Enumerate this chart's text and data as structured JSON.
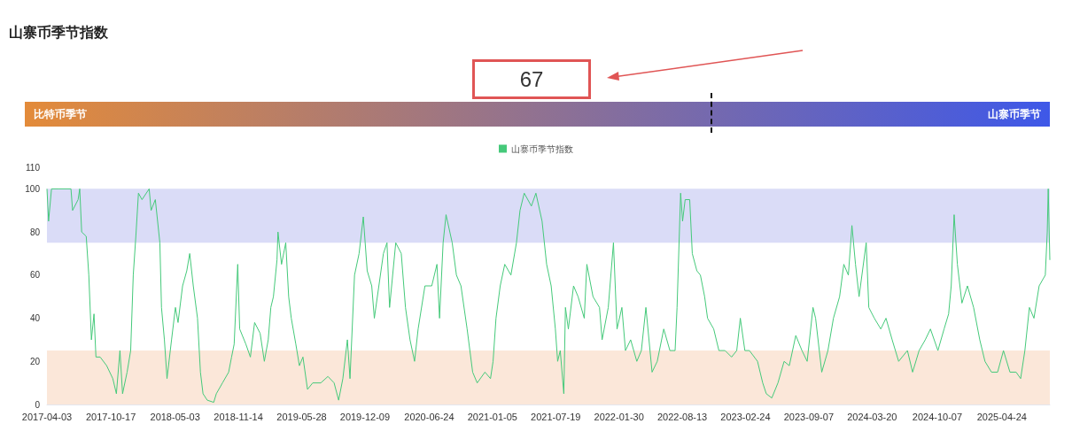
{
  "chart_data": {
    "type": "line",
    "title": "山寨币季节指数",
    "annotations": [
      "67",
      "比特币季节",
      "山寨币季节"
    ],
    "x": [
      "2017-04-03",
      "2017-04-08",
      "2017-04-17",
      "2017-05-11",
      "2017-06-16",
      "2017-06-21",
      "2017-07-08",
      "2017-07-13",
      "2017-07-19",
      "2017-08-02",
      "2017-08-10",
      "2017-08-18",
      "2017-08-26",
      "2017-09-01",
      "2017-09-14",
      "2017-10-04",
      "2017-10-23",
      "2017-11-03",
      "2017-11-14",
      "2017-11-22",
      "2017-12-06",
      "2017-12-17",
      "2017-12-25",
      "2018-01-02",
      "2018-01-10",
      "2018-01-21",
      "2018-02-12",
      "2018-02-18",
      "2018-03-03",
      "2018-03-17",
      "2018-03-22",
      "2018-03-31",
      "2018-04-08",
      "2018-04-22",
      "2018-05-04",
      "2018-05-12",
      "2018-05-26",
      "2018-06-08",
      "2018-06-17",
      "2018-06-28",
      "2018-07-11",
      "2018-07-20",
      "2018-07-28",
      "2018-08-10",
      "2018-08-30",
      "2018-09-07",
      "2018-09-26",
      "2018-10-15",
      "2018-10-24",
      "2018-11-01",
      "2018-11-12",
      "2018-11-18",
      "2018-12-07",
      "2018-12-21",
      "2019-01-03",
      "2019-01-20",
      "2019-02-02",
      "2019-02-14",
      "2019-02-22",
      "2019-03-02",
      "2019-03-13",
      "2019-03-16",
      "2019-03-27",
      "2019-04-09",
      "2019-04-18",
      "2019-04-26",
      "2019-05-10",
      "2019-05-21",
      "2019-06-01",
      "2019-06-15",
      "2019-07-01",
      "2019-07-26",
      "2019-08-17",
      "2019-09-05",
      "2019-09-19",
      "2019-10-02",
      "2019-10-16",
      "2019-10-24",
      "2019-11-07",
      "2019-11-21",
      "2019-12-04",
      "2019-12-16",
      "2019-12-30",
      "2020-01-07",
      "2020-02-04",
      "2020-02-15",
      "2020-02-23",
      "2020-03-13",
      "2020-03-30",
      "2020-04-12",
      "2020-04-26",
      "2020-05-10",
      "2020-05-21",
      "2020-06-11",
      "2020-07-02",
      "2020-07-18",
      "2020-07-26",
      "2020-08-06",
      "2020-08-15",
      "2020-09-03",
      "2020-09-16",
      "2020-09-30",
      "2020-10-19",
      "2020-11-05",
      "2020-11-19",
      "2020-12-13",
      "2020-12-30",
      "2021-01-07",
      "2021-01-16",
      "2021-01-29",
      "2021-02-12",
      "2021-03-03",
      "2021-03-20",
      "2021-03-31",
      "2021-04-13",
      "2021-05-05",
      "2021-05-19",
      "2021-06-07",
      "2021-06-21",
      "2021-07-05",
      "2021-07-18",
      "2021-07-25",
      "2021-08-02",
      "2021-08-13",
      "2021-08-18",
      "2021-08-27",
      "2021-09-12",
      "2021-09-26",
      "2021-10-15",
      "2021-10-23",
      "2021-11-11",
      "2021-12-01",
      "2021-12-09",
      "2021-12-28",
      "2022-01-13",
      "2022-01-24",
      "2022-02-08",
      "2022-02-19",
      "2022-03-07",
      "2022-03-26",
      "2022-04-09",
      "2022-04-23",
      "2022-05-12",
      "2022-05-28",
      "2022-06-17",
      "2022-07-06",
      "2022-07-22",
      "2022-07-28",
      "2022-08-08",
      "2022-08-14",
      "2022-08-22",
      "2022-09-05",
      "2022-09-13",
      "2022-09-27",
      "2022-10-08",
      "2022-10-21",
      "2022-10-30",
      "2022-11-18",
      "2022-12-04",
      "2022-12-23",
      "2023-01-12",
      "2023-01-28",
      "2023-02-08",
      "2023-02-22",
      "2023-03-08",
      "2023-04-02",
      "2023-04-18",
      "2023-04-29",
      "2023-05-16",
      "2023-06-04",
      "2023-06-23",
      "2023-07-09",
      "2023-07-29",
      "2023-08-17",
      "2023-09-02",
      "2023-09-20",
      "2023-09-28",
      "2023-10-17",
      "2023-11-05",
      "2023-11-22",
      "2023-12-11",
      "2023-12-24",
      "2024-01-07",
      "2024-01-18",
      "2024-01-29",
      "2024-02-09",
      "2024-03-02",
      "2024-03-10",
      "2024-03-27",
      "2024-04-16",
      "2024-05-02",
      "2024-05-21",
      "2024-06-10",
      "2024-07-07",
      "2024-07-23",
      "2024-08-12",
      "2024-08-31",
      "2024-09-16",
      "2024-10-09",
      "2024-10-28",
      "2024-11-11",
      "2024-11-19",
      "2024-11-28",
      "2024-12-08",
      "2024-12-22",
      "2025-01-08",
      "2025-01-27",
      "2025-02-15",
      "2025-03-03",
      "2025-03-23",
      "2025-04-11",
      "2025-04-29",
      "2025-05-19",
      "2025-06-07",
      "2025-06-21",
      "2025-07-04",
      "2025-07-18",
      "2025-08-01",
      "2025-08-17",
      "2025-09-05",
      "2025-09-11",
      "2025-09-14",
      "2025-09-19"
    ],
    "series": [
      {
        "name": "山寨币季节指数",
        "color": "#45c97a",
        "values": [
          100,
          85,
          100,
          100,
          100,
          90,
          95,
          100,
          80,
          78,
          60,
          30,
          42,
          22,
          22,
          18,
          12,
          5,
          25,
          5,
          15,
          25,
          60,
          78,
          98,
          95,
          100,
          90,
          95,
          75,
          45,
          30,
          12,
          30,
          45,
          38,
          55,
          62,
          70,
          55,
          40,
          15,
          5,
          2,
          1,
          5,
          10,
          15,
          22,
          28,
          65,
          35,
          28,
          22,
          38,
          33,
          20,
          30,
          45,
          50,
          67,
          80,
          65,
          75,
          50,
          40,
          28,
          18,
          22,
          7,
          10,
          10,
          13,
          10,
          2,
          12,
          30,
          12,
          60,
          70,
          87,
          62,
          55,
          40,
          70,
          75,
          45,
          75,
          70,
          45,
          30,
          20,
          35,
          55,
          55,
          65,
          40,
          75,
          88,
          75,
          60,
          55,
          35,
          15,
          10,
          15,
          12,
          20,
          40,
          55,
          65,
          60,
          75,
          90,
          98,
          92,
          98,
          85,
          65,
          55,
          35,
          20,
          25,
          5,
          45,
          35,
          55,
          50,
          40,
          65,
          50,
          45,
          30,
          45,
          75,
          35,
          45,
          25,
          30,
          20,
          25,
          45,
          15,
          20,
          35,
          25,
          25,
          45,
          98,
          85,
          95,
          95,
          70,
          62,
          60,
          50,
          40,
          35,
          25,
          25,
          22,
          25,
          40,
          25,
          25,
          20,
          10,
          5,
          3,
          10,
          20,
          18,
          32,
          25,
          20,
          45,
          40,
          15,
          25,
          40,
          50,
          65,
          60,
          83,
          65,
          50,
          75,
          45,
          40,
          35,
          40,
          30,
          20,
          25,
          15,
          25,
          30,
          35,
          25,
          35,
          42,
          55,
          88,
          65,
          47,
          55,
          45,
          30,
          20,
          15,
          15,
          25,
          15,
          15,
          12,
          25,
          45,
          40,
          55,
          60,
          80,
          100,
          67
        ]
      }
    ],
    "xlim": [
      "2017-04-03",
      "2025-09-19"
    ],
    "xticks": [
      "2017-04-03",
      "2017-10-17",
      "2018-05-03",
      "2018-11-14",
      "2019-05-28",
      "2019-12-09",
      "2020-06-24",
      "2021-01-05",
      "2021-07-19",
      "2022-01-30",
      "2022-08-13",
      "2023-02-24",
      "2023-09-07",
      "2024-03-20",
      "2024-10-07",
      "2025-04-24"
    ],
    "ylim": [
      0,
      110
    ],
    "yticks": [
      0,
      20,
      40,
      60,
      80,
      100,
      110
    ],
    "bands": [
      {
        "axis": "y",
        "from": 75,
        "to": 100,
        "color": "#dadcf7"
      },
      {
        "axis": "y",
        "from": 0,
        "to": 25,
        "color": "#fbe7d9"
      }
    ],
    "legend": "top",
    "marker": "none"
  }
}
